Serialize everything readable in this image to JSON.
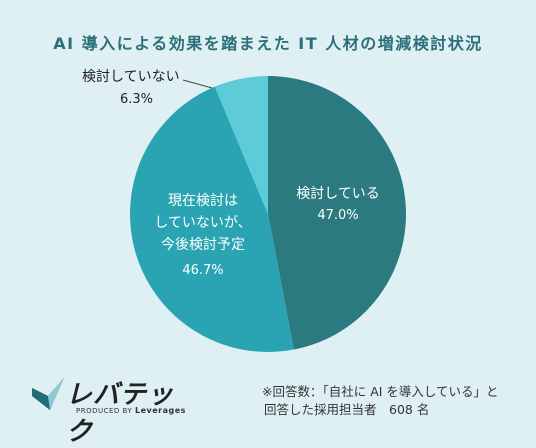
{
  "chart_data": {
    "type": "pie",
    "title": "AI 導入による効果を踏まえた IT 人材の増減検討状況",
    "slices": [
      {
        "label": "検討している",
        "value": 47.0,
        "value_label": "47.0%",
        "color": "#2a7a80"
      },
      {
        "label": "現在検討はしていないが、今後検討予定",
        "value": 46.7,
        "value_label": "46.7%",
        "color": "#2aa4b2"
      },
      {
        "label": "検討していない",
        "value": 6.3,
        "value_label": "6.3%",
        "color": "#5ecbd8"
      }
    ]
  },
  "labels": {
    "slice0_text": "検討している",
    "slice1_line1": "現在検討は",
    "slice1_line2": "していないが、",
    "slice1_line3": "今後検討予定",
    "slice2_text": "検討していない"
  },
  "brand": {
    "name": "レバテック",
    "sub_prefix": "PRODUCED BY",
    "sub_name": "Leverages"
  },
  "note": {
    "line1": "※回答数：「自社に AI を導入している」と",
    "line2": "回答した採用担当者　608 名"
  }
}
